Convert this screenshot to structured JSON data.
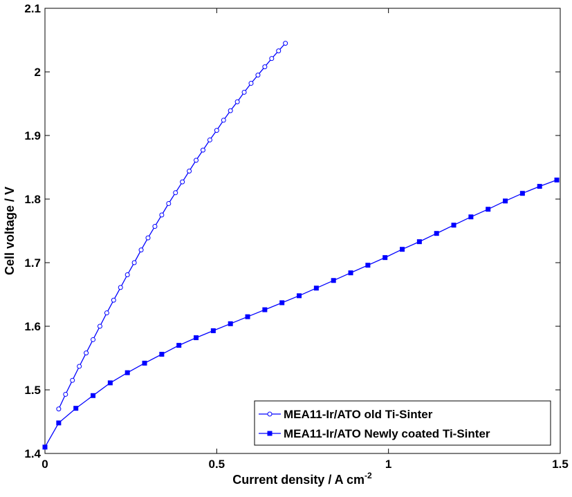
{
  "chart_data": {
    "type": "line",
    "xlabel": "Current density / A cm",
    "xlabel_superscript": "-2",
    "ylabel": "Cell voltage / V",
    "xlim": [
      0,
      1.5
    ],
    "ylim": [
      1.4,
      2.1
    ],
    "x_ticks": [
      {
        "value": 0,
        "label": "0"
      },
      {
        "value": 0.5,
        "label": "0.5"
      },
      {
        "value": 1,
        "label": "1"
      },
      {
        "value": 1.5,
        "label": "1.5"
      }
    ],
    "y_ticks": [
      {
        "value": 1.4,
        "label": "1.4"
      },
      {
        "value": 1.5,
        "label": "1.5"
      },
      {
        "value": 1.6,
        "label": "1.6"
      },
      {
        "value": 1.7,
        "label": "1.7"
      },
      {
        "value": 1.8,
        "label": "1.8"
      },
      {
        "value": 1.9,
        "label": "1.9"
      },
      {
        "value": 2.0,
        "label": "2"
      },
      {
        "value": 2.1,
        "label": "2.1"
      }
    ],
    "grid": false,
    "legend_position": "bottom-right",
    "series": [
      {
        "name": "MEA11-Ir/ATO old Ti-Sinter",
        "marker": "open-circle",
        "color": "#0000ff",
        "x": [
          0.04,
          0.06,
          0.08,
          0.1,
          0.12,
          0.14,
          0.16,
          0.18,
          0.2,
          0.22,
          0.24,
          0.26,
          0.28,
          0.3,
          0.32,
          0.34,
          0.36,
          0.38,
          0.4,
          0.42,
          0.44,
          0.46,
          0.48,
          0.5,
          0.52,
          0.54,
          0.56,
          0.58,
          0.6,
          0.62,
          0.64,
          0.66,
          0.68,
          0.7
        ],
        "y": [
          1.47,
          1.493,
          1.515,
          1.537,
          1.558,
          1.579,
          1.6,
          1.621,
          1.641,
          1.661,
          1.681,
          1.7,
          1.72,
          1.739,
          1.757,
          1.775,
          1.793,
          1.81,
          1.827,
          1.844,
          1.861,
          1.877,
          1.893,
          1.908,
          1.924,
          1.939,
          1.953,
          1.968,
          1.982,
          1.995,
          2.008,
          2.021,
          2.033,
          2.045
        ]
      },
      {
        "name": "MEA11-Ir/ATO Newly coated Ti-Sinter",
        "marker": "filled-square",
        "color": "#0000ff",
        "x": [
          0,
          0.04,
          0.09,
          0.14,
          0.19,
          0.24,
          0.29,
          0.34,
          0.39,
          0.44,
          0.49,
          0.54,
          0.59,
          0.64,
          0.69,
          0.74,
          0.79,
          0.84,
          0.89,
          0.94,
          0.99,
          1.04,
          1.09,
          1.14,
          1.19,
          1.24,
          1.29,
          1.34,
          1.39,
          1.44,
          1.49
        ],
        "y": [
          1.41,
          1.448,
          1.471,
          1.491,
          1.511,
          1.527,
          1.542,
          1.556,
          1.57,
          1.582,
          1.593,
          1.604,
          1.615,
          1.626,
          1.637,
          1.648,
          1.66,
          1.672,
          1.684,
          1.696,
          1.708,
          1.721,
          1.733,
          1.746,
          1.759,
          1.772,
          1.784,
          1.797,
          1.809,
          1.82,
          1.83
        ]
      }
    ]
  }
}
